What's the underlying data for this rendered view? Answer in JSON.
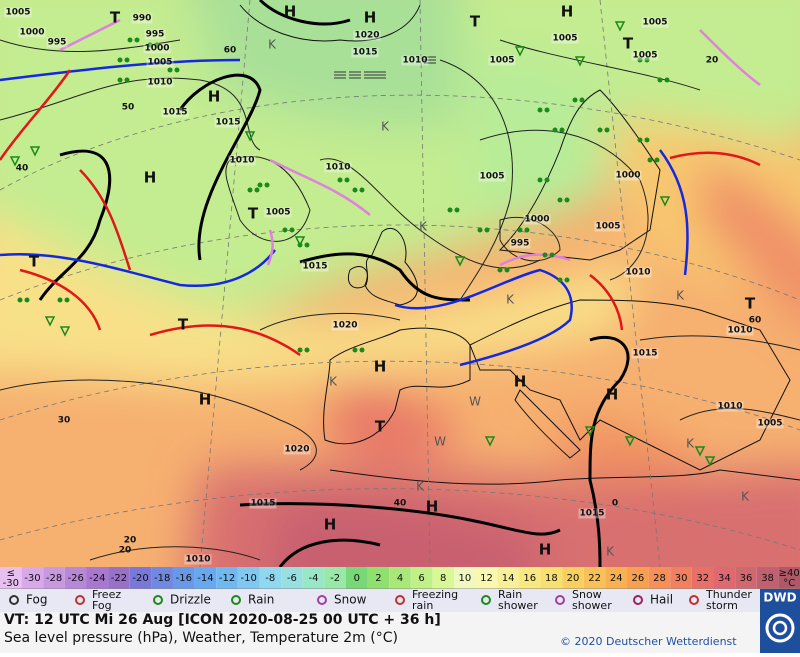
{
  "map": {
    "isobar_labels": [
      1005,
      1000,
      995,
      990,
      995,
      1000,
      1005,
      1010,
      1015,
      1015,
      1010,
      1005,
      1010,
      1015,
      1020,
      1020,
      1015,
      1010,
      1020,
      1015,
      1010,
      1005,
      1005,
      1005,
      1005,
      1000,
      1005,
      1000,
      995,
      1005,
      1010,
      1015,
      1010,
      1010,
      1005,
      1015
    ],
    "grid_labels": [
      60,
      50,
      40,
      30,
      20,
      20,
      60,
      40,
      0,
      20
    ],
    "centers": [
      "H",
      "H",
      "H",
      "H",
      "H",
      "H",
      "H",
      "H",
      "H",
      "H",
      "H",
      "H",
      "T",
      "T",
      "T",
      "T",
      "T",
      "T",
      "T",
      "T"
    ],
    "cold_spots": [
      "K",
      "K",
      "K",
      "K",
      "K",
      "K",
      "K",
      "W",
      "W",
      "K",
      "K",
      "K"
    ]
  },
  "temperature_scale": {
    "low_label": [
      "≤",
      -30
    ],
    "values": [
      -30,
      -28,
      -26,
      -24,
      -22,
      -20,
      -18,
      -16,
      -14,
      -12,
      -10,
      -8,
      -6,
      -4,
      -2,
      0,
      2,
      4,
      6,
      8,
      10,
      12,
      14,
      16,
      18,
      20,
      22,
      24,
      26,
      28,
      30,
      32,
      34,
      36,
      38
    ],
    "colors": [
      "#d8a8e8",
      "#c898e0",
      "#b888d8",
      "#a878d0",
      "#9870c8",
      "#7878d8",
      "#7088e0",
      "#6898e8",
      "#68a8f0",
      "#70b8f0",
      "#80c8f0",
      "#90d8f0",
      "#98e0e0",
      "#98e8c8",
      "#98e8a8",
      "#78d878",
      "#90e070",
      "#a8e878",
      "#c0f088",
      "#d8f898",
      "#f0f8c0",
      "#f8f8b0",
      "#f8f098",
      "#f8e880",
      "#f8e070",
      "#f8d060",
      "#f8c058",
      "#f8b050",
      "#f8a050",
      "#f49058",
      "#f08060",
      "#e87068",
      "#e06870",
      "#d06870",
      "#c06070"
    ],
    "high_label": [
      "≥40",
      "°C"
    ]
  },
  "weather_legend": [
    "Fog",
    "Freez\nFog",
    "Drizzle",
    "Rain",
    "Snow",
    "Freezing\nrain",
    "Rain\nshower",
    "Snow\nshower",
    "Hail",
    "Thunder\nstorm"
  ],
  "footer": {
    "valid_time": "VT: 12 UTC Mi  26 Aug [ICON 2020-08-25  00 UTC + 36 h]",
    "description": "Sea level pressure (hPa), Weather, Temperature 2m (°C)",
    "copyright": "© 2020 Deutscher Wetterdienst",
    "logo": "DWD"
  }
}
